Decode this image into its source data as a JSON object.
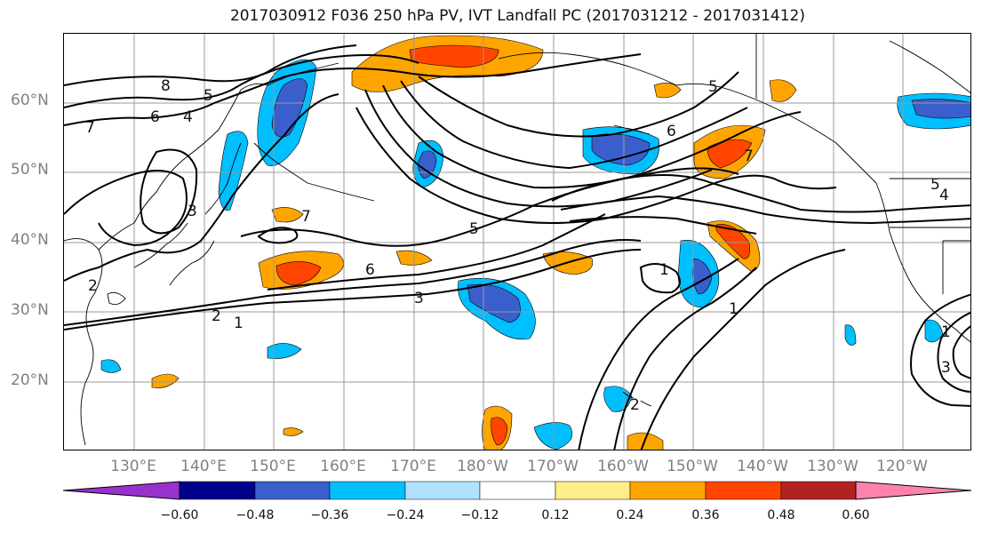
{
  "title": "2017030912 F036 250 hPa PV, IVT Landfall PC (2017031212 - 2017031412)",
  "lat_labels": [
    "60°N",
    "50°N",
    "40°N",
    "30°N",
    "20°N"
  ],
  "lon_labels": [
    "130°E",
    "140°E",
    "150°E",
    "160°E",
    "170°E",
    "180°W",
    "170°W",
    "160°W",
    "150°W",
    "140°W",
    "130°W",
    "120°W"
  ],
  "contour_labels": [
    "8",
    "7",
    "6",
    "5",
    "4",
    "3",
    "2",
    "7",
    "5",
    "6",
    "3",
    "2",
    "1",
    "1",
    "1",
    "5",
    "1",
    "7",
    "6",
    "5",
    "4",
    "3",
    "2"
  ],
  "colorbar": {
    "tick_labels": [
      "−0.60",
      "−0.48",
      "−0.36",
      "−0.24",
      "−0.12",
      "0.12",
      "0.24",
      "0.36",
      "0.48",
      "0.60"
    ],
    "colors": [
      "#9932CC",
      "#00008B",
      "#3A5FCD",
      "#00BFFF",
      "#B0E2FF",
      "#FFFFFF",
      "#FFEC8B",
      "#FFA500",
      "#FF4500",
      "#B22222",
      "#FF82AB"
    ]
  },
  "colors": {
    "positive_fill": "#FFA500",
    "negative_fill": "#00BFFF",
    "grid": "#999999",
    "axis_label": "#808080"
  }
}
